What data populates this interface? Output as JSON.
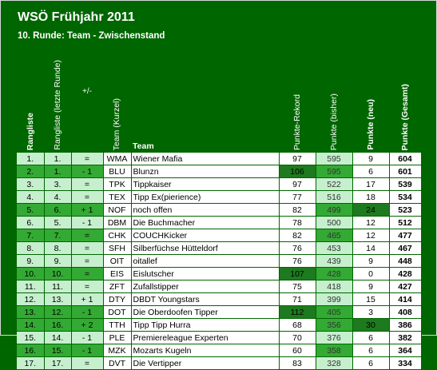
{
  "title": "WSÖ Frühjahr 2011",
  "subtitle": "10. Runde: Team - Zwischenstand",
  "headers": {
    "rangliste": "Rangliste",
    "rangliste_letzte": "Rangliste (letzte Runde)",
    "plusminus": "+/-",
    "team_kurzel": "Team (Kurzel)",
    "team": "Team",
    "rekord": "Punkte-Rekord",
    "bisher": "Punkte (bisher)",
    "neu": "Punkte (neu)",
    "gesamt": "Punkte (Gesamt)"
  },
  "rows": [
    {
      "rank": "1.",
      "prev": "1.",
      "pm": "=",
      "abbr": "WMA",
      "team": "Wiener Mafia",
      "rec": "97",
      "bisher": "595",
      "neu": "9",
      "ges": "604"
    },
    {
      "rank": "2.",
      "prev": "1.",
      "pm": "- 1",
      "abbr": "BLU",
      "team": "Blunzn",
      "rec": "106",
      "bisher": "595",
      "neu": "6",
      "ges": "601"
    },
    {
      "rank": "3.",
      "prev": "3.",
      "pm": "=",
      "abbr": "TPK",
      "team": "Tippkaiser",
      "rec": "97",
      "bisher": "522",
      "neu": "17",
      "ges": "539"
    },
    {
      "rank": "4.",
      "prev": "4.",
      "pm": "=",
      "abbr": "TEX",
      "team": "Tipp Ex(pierience)",
      "rec": "77",
      "bisher": "516",
      "neu": "18",
      "ges": "534"
    },
    {
      "rank": "5.",
      "prev": "6.",
      "pm": "+ 1",
      "abbr": "NOF",
      "team": "noch offen",
      "rec": "82",
      "bisher": "499",
      "neu": "24",
      "ges": "523"
    },
    {
      "rank": "6.",
      "prev": "5.",
      "pm": "- 1",
      "abbr": "DBM",
      "team": "Die Buchmacher",
      "rec": "78",
      "bisher": "500",
      "neu": "12",
      "ges": "512"
    },
    {
      "rank": "7.",
      "prev": "7.",
      "pm": "=",
      "abbr": "CHK",
      "team": "COUCHKicker",
      "rec": "82",
      "bisher": "465",
      "neu": "12",
      "ges": "477"
    },
    {
      "rank": "8.",
      "prev": "8.",
      "pm": "=",
      "abbr": "SFH",
      "team": "Silberfüchse Hütteldorf",
      "rec": "76",
      "bisher": "453",
      "neu": "14",
      "ges": "467"
    },
    {
      "rank": "9.",
      "prev": "9.",
      "pm": "=",
      "abbr": "OIT",
      "team": "oitallef",
      "rec": "76",
      "bisher": "439",
      "neu": "9",
      "ges": "448"
    },
    {
      "rank": "10.",
      "prev": "10.",
      "pm": "=",
      "abbr": "EIS",
      "team": "Eislutscher",
      "rec": "107",
      "bisher": "428",
      "neu": "0",
      "ges": "428"
    },
    {
      "rank": "11.",
      "prev": "11.",
      "pm": "=",
      "abbr": "ZFT",
      "team": "Zufallstipper",
      "rec": "75",
      "bisher": "418",
      "neu": "9",
      "ges": "427"
    },
    {
      "rank": "12.",
      "prev": "13.",
      "pm": "+ 1",
      "abbr": "DTY",
      "team": "DBDT Youngstars",
      "rec": "71",
      "bisher": "399",
      "neu": "15",
      "ges": "414"
    },
    {
      "rank": "13.",
      "prev": "12.",
      "pm": "- 1",
      "abbr": "DOT",
      "team": "Die Oberdoofen Tipper",
      "rec": "112",
      "bisher": "405",
      "neu": "3",
      "ges": "408"
    },
    {
      "rank": "14.",
      "prev": "16.",
      "pm": "+ 2",
      "abbr": "TTH",
      "team": "Tipp Tipp Hurra",
      "rec": "68",
      "bisher": "356",
      "neu": "30",
      "ges": "386"
    },
    {
      "rank": "15.",
      "prev": "14.",
      "pm": "- 1",
      "abbr": "PLE",
      "team": "Premiereleague Experten",
      "rec": "70",
      "bisher": "376",
      "neu": "6",
      "ges": "382"
    },
    {
      "rank": "16.",
      "prev": "15.",
      "pm": "- 1",
      "abbr": "MZK",
      "team": "Mozarts Kugeln",
      "rec": "60",
      "bisher": "358",
      "neu": "6",
      "ges": "364"
    },
    {
      "rank": "17.",
      "prev": "17.",
      "pm": "=",
      "abbr": "DVT",
      "team": "Die Vertipper",
      "rec": "83",
      "bisher": "328",
      "neu": "6",
      "ges": "334"
    }
  ]
}
